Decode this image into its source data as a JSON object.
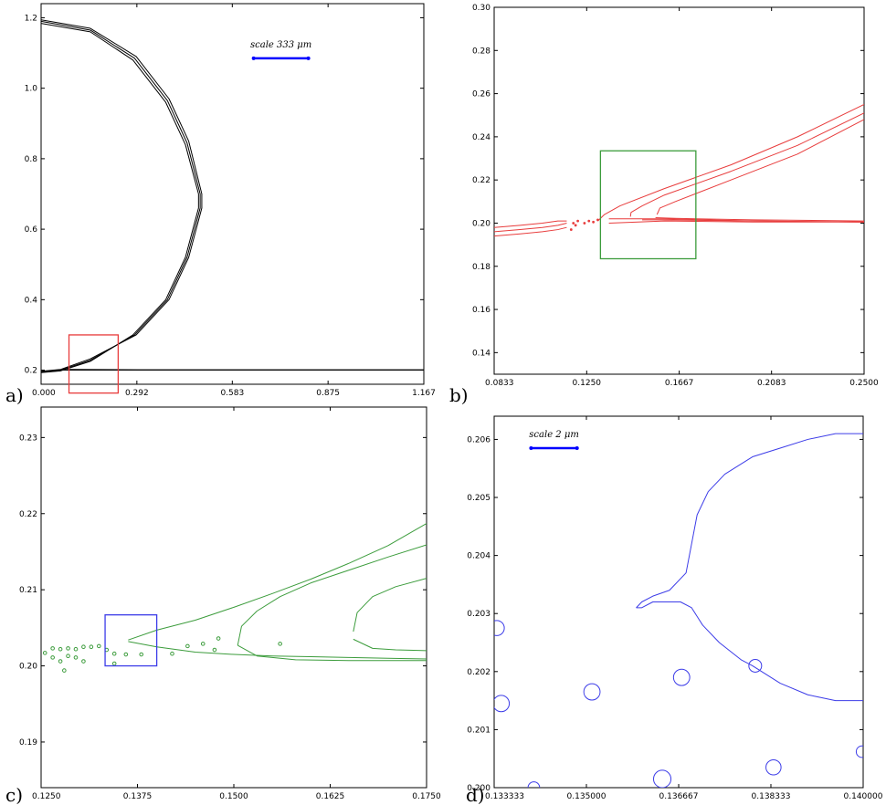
{
  "panels": [
    {
      "label": "a)",
      "chart_data": {
        "type": "line",
        "series_color": "#000000",
        "xlim": [
          0.0,
          1.167
        ],
        "ylim": [
          0.16,
          1.24
        ],
        "xticks": [
          0.0,
          0.292,
          0.583,
          0.875,
          1.167
        ],
        "xtick_labels": [
          "0.000",
          "0.292",
          "0.583",
          "0.875",
          "1.167"
        ],
        "yticks": [
          0.2,
          0.4,
          0.6,
          0.8,
          1.0,
          1.2
        ],
        "ytick_labels": [
          "0.2",
          "0.4",
          "0.6",
          "0.8",
          "1.0",
          "1.2"
        ],
        "scale_bar": {
          "label": "scale 333 μm",
          "x": [
            0.648,
            0.815
          ],
          "y": 1.085,
          "color": "#0000ff"
        },
        "zoom_box": {
          "x": [
            0.085,
            0.235
          ],
          "y": [
            0.135,
            0.3
          ],
          "color": "#e83c3c"
        },
        "series": [
          {
            "x": [
              0.0,
              0.15,
              0.28,
              0.38,
              0.44,
              0.48,
              0.48,
              0.44,
              0.38,
              0.28,
              0.15,
              0.06,
              0.0
            ],
            "y": [
              1.184,
              1.16,
              1.08,
              0.96,
              0.84,
              0.7,
              0.66,
              0.52,
              0.4,
              0.3,
              0.225,
              0.198,
              0.193
            ]
          },
          {
            "x": [
              0.0,
              0.15,
              0.285,
              0.385,
              0.445,
              0.485,
              0.485,
              0.445,
              0.385,
              0.285,
              0.15,
              0.06,
              0.0
            ],
            "y": [
              1.19,
              1.165,
              1.085,
              0.965,
              0.845,
              0.7,
              0.66,
              0.52,
              0.4,
              0.3,
              0.228,
              0.2,
              0.195
            ]
          },
          {
            "x": [
              0.0,
              0.15,
              0.29,
              0.39,
              0.45,
              0.49,
              0.49,
              0.45,
              0.39,
              0.29,
              0.15,
              0.06,
              0.0
            ],
            "y": [
              1.194,
              1.17,
              1.09,
              0.97,
              0.85,
              0.7,
              0.66,
              0.52,
              0.4,
              0.3,
              0.232,
              0.202,
              0.197
            ]
          },
          {
            "x": [
              0.06,
              0.3,
              0.6,
              0.9,
              1.167
            ],
            "y": [
              0.2,
              0.2,
              0.2,
              0.2,
              0.2
            ]
          },
          {
            "x": [
              0.08,
              0.3,
              0.6,
              0.9,
              1.167
            ],
            "y": [
              0.202,
              0.201,
              0.201,
              0.201,
              0.201
            ]
          }
        ]
      }
    },
    {
      "label": "b)",
      "chart_data": {
        "type": "line",
        "series_color": "#e83c3c",
        "xlim": [
          0.0833,
          0.25
        ],
        "ylim": [
          0.13,
          0.3
        ],
        "xticks": [
          0.0833,
          0.125,
          0.1667,
          0.2083,
          0.25
        ],
        "xtick_labels": [
          "0.0833",
          "0.1250",
          "0.1667",
          "0.2083",
          "0.2500"
        ],
        "yticks": [
          0.14,
          0.16,
          0.18,
          0.2,
          0.22,
          0.24,
          0.26,
          0.28,
          0.3
        ],
        "ytick_labels": [
          "0.14",
          "0.16",
          "0.18",
          "0.20",
          "0.22",
          "0.24",
          "0.26",
          "0.28",
          "0.30"
        ],
        "zoom_box": {
          "x": [
            0.1312,
            0.1742
          ],
          "y": [
            0.1835,
            0.2335
          ],
          "color": "#3c9c3c"
        },
        "series": [
          {
            "x": [
              0.0833,
              0.095,
              0.105,
              0.112,
              0.116
            ],
            "y": [
              0.198,
              0.199,
              0.2,
              0.201,
              0.201
            ]
          },
          {
            "x": [
              0.0833,
              0.095,
              0.105,
              0.112,
              0.116
            ],
            "y": [
              0.196,
              0.197,
              0.198,
              0.199,
              0.2
            ]
          },
          {
            "x": [
              0.0833,
              0.095,
              0.105,
              0.112,
              0.116
            ],
            "y": [
              0.194,
              0.195,
              0.196,
              0.197,
              0.198
            ]
          },
          {
            "x": [
              0.135,
              0.16,
              0.2,
              0.25
            ],
            "y": [
              0.2,
              0.201,
              0.2005,
              0.2005
            ]
          },
          {
            "x": [
              0.13,
              0.133,
              0.14,
              0.16,
              0.19,
              0.22,
              0.25
            ],
            "y": [
              0.201,
              0.204,
              0.208,
              0.216,
              0.227,
              0.24,
              0.255
            ]
          },
          {
            "x": [
              0.135,
              0.145,
              0.16,
              0.2,
              0.25
            ],
            "y": [
              0.202,
              0.202,
              0.202,
              0.201,
              0.2005
            ]
          },
          {
            "x": [
              0.1447,
              0.145,
              0.15,
              0.16,
              0.19,
              0.22,
              0.25
            ],
            "y": [
              0.203,
              0.205,
              0.208,
              0.213,
              0.224,
              0.236,
              0.251
            ]
          },
          {
            "x": [
              0.15,
              0.16,
              0.2,
              0.25
            ],
            "y": [
              0.2015,
              0.2015,
              0.201,
              0.2005
            ]
          },
          {
            "x": [
              0.1567,
              0.158,
              0.165,
              0.19,
              0.22,
              0.25
            ],
            "y": [
              0.204,
              0.207,
              0.21,
              0.22,
              0.232,
              0.248
            ]
          },
          {
            "x": [
              0.156,
              0.165,
              0.2,
              0.25
            ],
            "y": [
              0.2025,
              0.2022,
              0.2015,
              0.201
            ]
          }
        ],
        "droplets": {
          "x": [
            0.119,
            0.121,
            0.124,
            0.126,
            0.128,
            0.13,
            0.118,
            0.12
          ],
          "y": [
            0.2,
            0.201,
            0.2,
            0.201,
            0.2005,
            0.2015,
            0.197,
            0.199
          ]
        }
      }
    },
    {
      "label": "c)",
      "chart_data": {
        "type": "line",
        "series_color": "#3c9c3c",
        "xlim": [
          0.125,
          0.175
        ],
        "ylim": [
          0.184,
          0.234
        ],
        "xticks": [
          0.125,
          0.1375,
          0.15,
          0.1625,
          0.175
        ],
        "xtick_labels": [
          "0.1250",
          "0.1375",
          "0.1500",
          "0.1625",
          "0.1750"
        ],
        "yticks": [
          0.19,
          0.2,
          0.21,
          0.22,
          0.23
        ],
        "ytick_labels": [
          "0.19",
          "0.20",
          "0.21",
          "0.22",
          "0.23"
        ],
        "zoom_box": {
          "x": [
            0.1333,
            0.14
          ],
          "y": [
            0.2,
            0.2067
          ],
          "color": "#3c3ce8"
        },
        "series": [
          {
            "x": [
              0.1363,
              0.14,
              0.145,
              0.15,
              0.155,
              0.16,
              0.165,
              0.17,
              0.175
            ],
            "y": [
              0.2034,
              0.2047,
              0.206,
              0.2077,
              0.2095,
              0.2114,
              0.2135,
              0.2158,
              0.2187
            ]
          },
          {
            "x": [
              0.1363,
              0.14,
              0.145,
              0.15,
              0.155,
              0.16,
              0.165,
              0.17,
              0.175
            ],
            "y": [
              0.2032,
              0.2025,
              0.2018,
              0.2015,
              0.2013,
              0.2012,
              0.2011,
              0.201,
              0.2009
            ]
          },
          {
            "x": [
              0.1505,
              0.151,
              0.153,
              0.156,
              0.16,
              0.165,
              0.17,
              0.175
            ],
            "y": [
              0.2027,
              0.2052,
              0.2072,
              0.2091,
              0.2109,
              0.2126,
              0.2143,
              0.2159
            ]
          },
          {
            "x": [
              0.1505,
              0.153,
              0.158,
              0.165,
              0.175
            ],
            "y": [
              0.2027,
              0.2013,
              0.2008,
              0.2007,
              0.2007
            ]
          },
          {
            "x": [
              0.1655,
              0.166,
              0.168,
              0.171,
              0.175
            ],
            "y": [
              0.2045,
              0.207,
              0.2091,
              0.2104,
              0.2115
            ]
          },
          {
            "x": [
              0.1655,
              0.168,
              0.171,
              0.175
            ],
            "y": [
              0.2035,
              0.2023,
              0.2021,
              0.202
            ]
          }
        ],
        "droplets": {
          "x": [
            0.1255,
            0.1265,
            0.1275,
            0.1285,
            0.1295,
            0.1305,
            0.1315,
            0.1325,
            0.1335,
            0.1265,
            0.1275,
            0.1285,
            0.1295,
            0.1305,
            0.1345,
            0.136,
            0.138,
            0.142,
            0.144,
            0.146,
            0.148,
            0.1475,
            0.156,
            0.128,
            0.1345
          ],
          "y": [
            0.2017,
            0.2023,
            0.2022,
            0.2023,
            0.2022,
            0.2025,
            0.2025,
            0.2026,
            0.2021,
            0.2011,
            0.2006,
            0.2013,
            0.2011,
            0.2006,
            0.2016,
            0.2015,
            0.2015,
            0.2016,
            0.2026,
            0.2029,
            0.2036,
            0.2021,
            0.2029,
            0.1994,
            0.2003
          ]
        }
      }
    },
    {
      "label": "d)",
      "chart_data": {
        "type": "line",
        "series_color": "#3c3ce8",
        "xlim": [
          0.133333,
          0.14
        ],
        "ylim": [
          0.2,
          0.2064
        ],
        "xticks": [
          0.133333,
          0.135,
          0.136667,
          0.138333,
          0.14
        ],
        "xtick_labels": [
          "0.133333",
          "0.135000",
          "0.136667",
          "0.138333",
          "0.140000"
        ],
        "yticks": [
          0.2,
          0.201,
          0.202,
          0.203,
          0.204,
          0.205,
          0.206
        ],
        "ytick_labels": [
          "0.200",
          "0.201",
          "0.202",
          "0.203",
          "0.204",
          "0.205",
          "0.206"
        ],
        "scale_bar": {
          "label": "scale 2 μm",
          "x": [
            0.134,
            0.13483
          ],
          "y": 0.20585,
          "color": "#0000ff"
        },
        "series": [
          {
            "x": [
              0.1359,
              0.136,
              0.1362,
              0.1365,
              0.1368,
              0.1369,
              0.137,
              0.1372,
              0.1375,
              0.138,
              0.1385,
              0.139,
              0.1395,
              0.14
            ],
            "y": [
              0.2031,
              0.2032,
              0.2033,
              0.2034,
              0.2037,
              0.2042,
              0.2047,
              0.2051,
              0.2054,
              0.2057,
              0.20585,
              0.206,
              0.2061,
              0.2061
            ]
          },
          {
            "x": [
              0.1359,
              0.136,
              0.1362,
              0.1365,
              0.1367,
              0.1369,
              0.1371,
              0.1374,
              0.1378,
              0.138,
              0.1385,
              0.139,
              0.1395,
              0.14
            ],
            "y": [
              0.2031,
              0.2031,
              0.2032,
              0.2032,
              0.2032,
              0.2031,
              0.2028,
              0.2025,
              0.2022,
              0.2021,
              0.2018,
              0.2016,
              0.2015,
              0.2015
            ]
          }
        ],
        "droplets": {
          "x": [
            0.13338,
            0.13346,
            0.13405,
            0.1351,
            0.13637,
            0.13672,
            0.13805,
            0.13838,
            0.13998
          ],
          "y": [
            0.20275,
            0.20145,
            0.2,
            0.20165,
            0.20015,
            0.2019,
            0.2021,
            0.20035,
            0.20062
          ],
          "r": [
            0.00013,
            0.00014,
            0.0001,
            0.00014,
            0.00015,
            0.00014,
            0.00011,
            0.00013,
            0.0001
          ]
        }
      }
    }
  ]
}
